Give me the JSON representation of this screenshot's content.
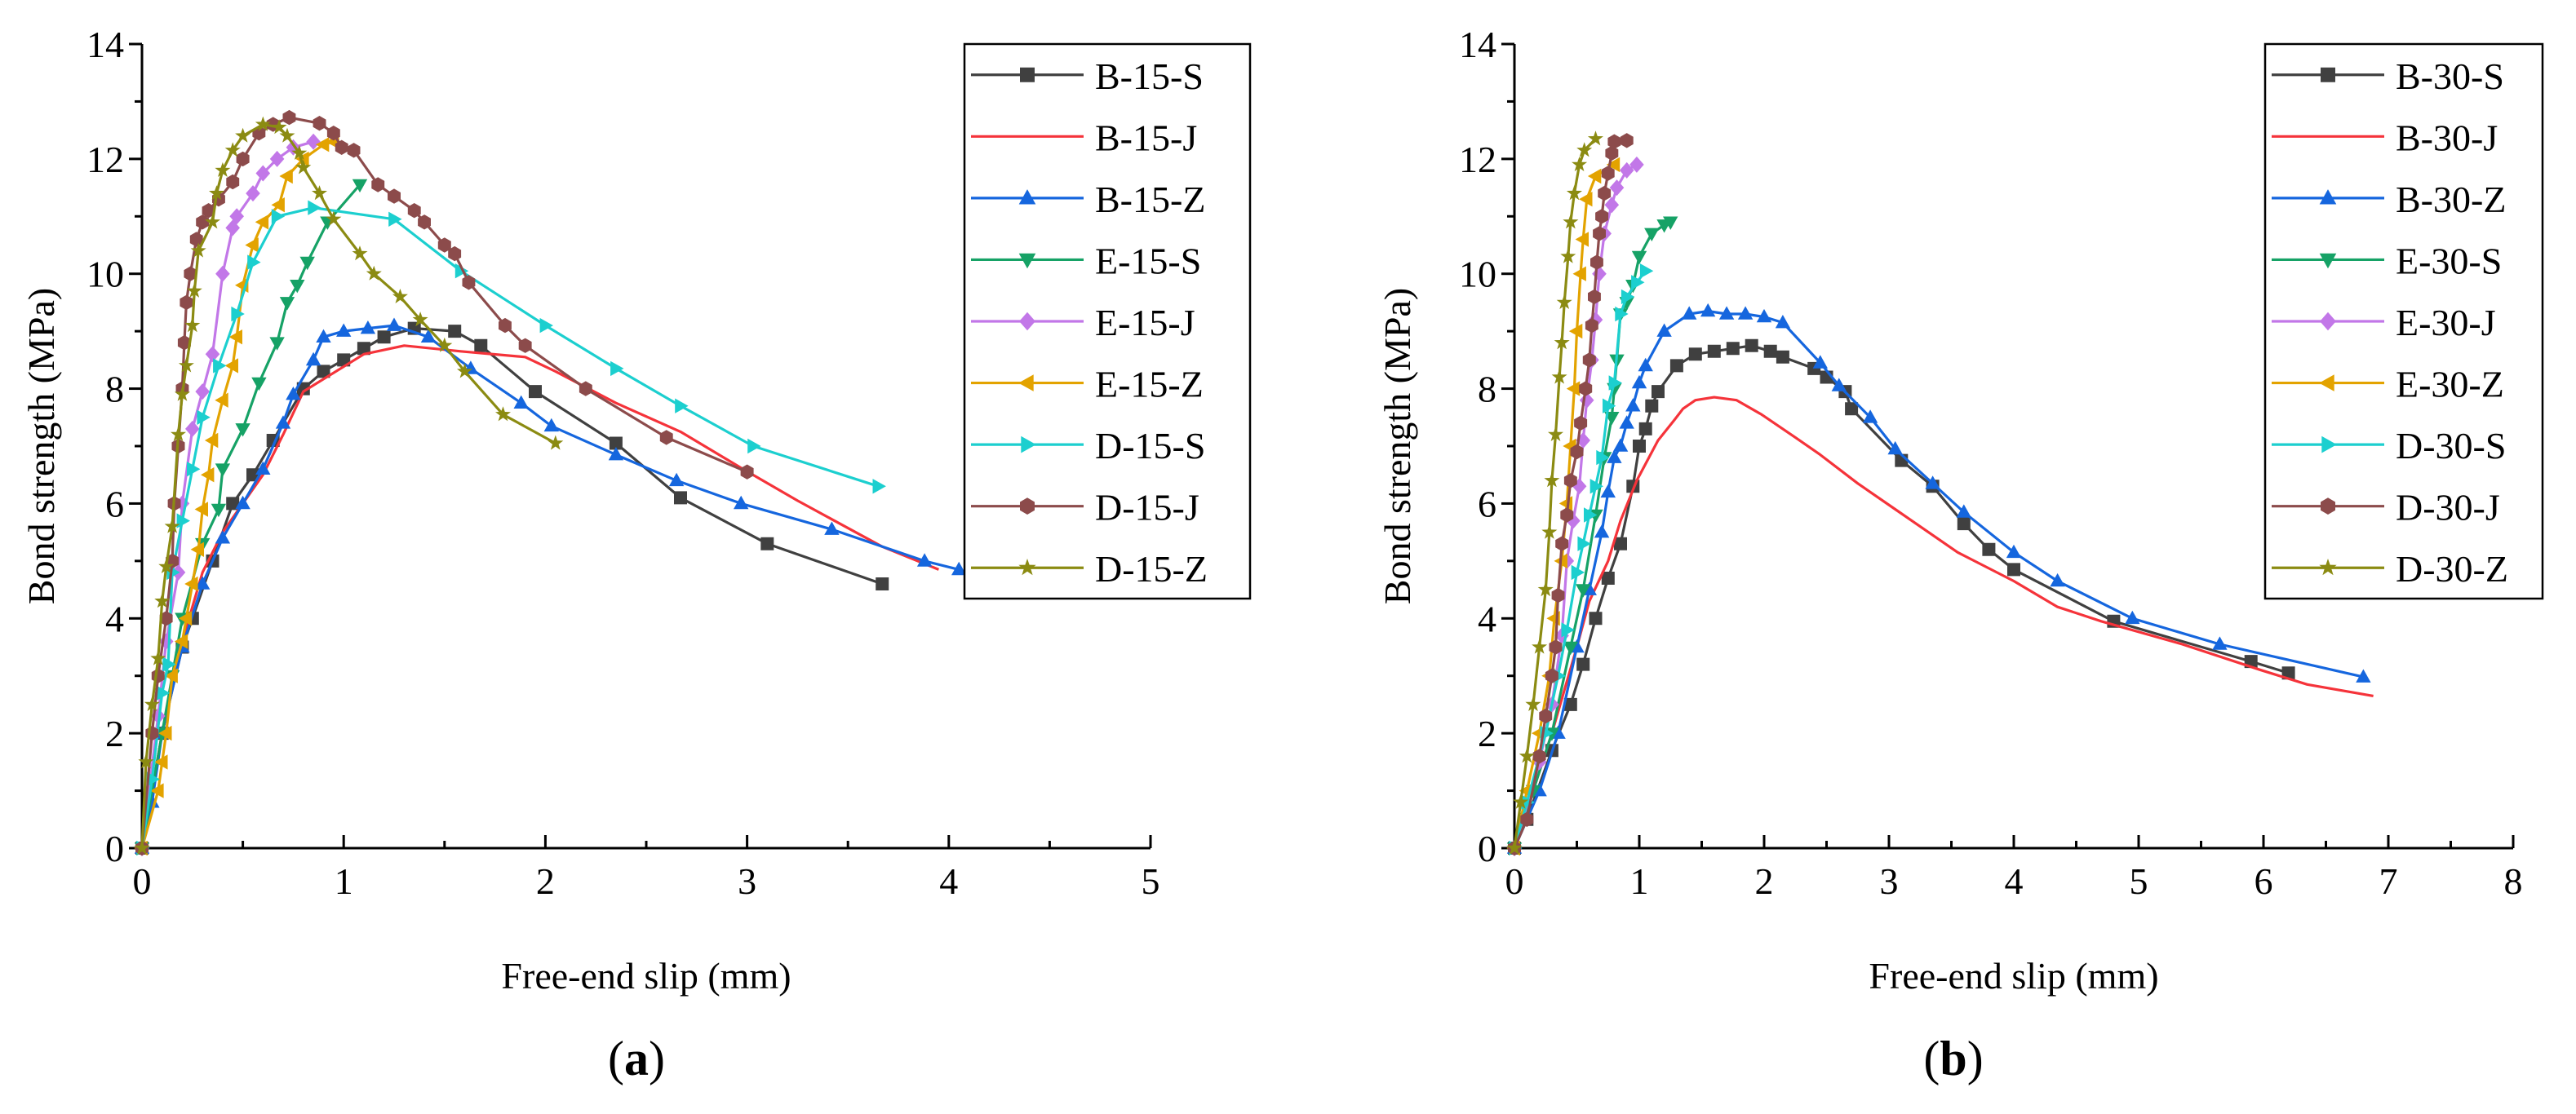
{
  "chart_data": [
    {
      "type": "line",
      "caption_open": "(",
      "caption_letter": "a",
      "caption_close": ")",
      "xlabel": "Free-end slip (mm)",
      "ylabel": "Bond strength (MPa)",
      "xlim": [
        0,
        5
      ],
      "ylim": [
        0,
        14
      ],
      "xticks": [
        "0",
        "1",
        "2",
        "3",
        "4",
        "5"
      ],
      "yticks": [
        "0",
        "2",
        "4",
        "6",
        "8",
        "10",
        "12",
        "14"
      ],
      "grid": false,
      "legend_position": "top-right",
      "series": [
        {
          "name": "B-15-S",
          "color": "#404040",
          "marker": "square",
          "x": [
            0,
            0.1,
            0.2,
            0.25,
            0.35,
            0.45,
            0.55,
            0.65,
            0.8,
            0.9,
            1.0,
            1.1,
            1.2,
            1.35,
            1.55,
            1.68,
            1.95,
            2.35,
            2.67,
            3.1,
            3.67
          ],
          "y": [
            0,
            2,
            3.5,
            4,
            5,
            6,
            6.5,
            7.1,
            8,
            8.3,
            8.5,
            8.7,
            8.9,
            9.05,
            9,
            8.75,
            7.95,
            7.05,
            6.1,
            5.3,
            4.6
          ]
        },
        {
          "name": "B-15-J",
          "color": "#f5333a",
          "marker": "circle",
          "x": [
            0,
            0.1,
            0.2,
            0.3,
            0.4,
            0.5,
            0.6,
            0.7,
            0.8,
            1.1,
            1.3,
            1.58,
            1.9,
            2.05,
            2.35,
            2.67,
            2.98,
            3.25,
            3.67,
            3.95
          ],
          "y": [
            0,
            2,
            3.6,
            4.8,
            5.5,
            6.0,
            6.5,
            7.2,
            7.95,
            8.6,
            8.75,
            8.65,
            8.55,
            8.3,
            7.75,
            7.25,
            6.6,
            6.05,
            5.25,
            4.85
          ]
        },
        {
          "name": "B-15-Z",
          "color": "#1566de",
          "marker": "triangle-up",
          "x": [
            0,
            0.05,
            0.1,
            0.2,
            0.3,
            0.4,
            0.5,
            0.6,
            0.7,
            0.75,
            0.85,
            0.9,
            1.0,
            1.12,
            1.25,
            1.42,
            1.63,
            1.88,
            2.03,
            2.35,
            2.65,
            2.97,
            3.42,
            3.88,
            4.05
          ],
          "y": [
            0,
            0.8,
            2,
            3.5,
            4.6,
            5.4,
            6.0,
            6.6,
            7.4,
            7.9,
            8.5,
            8.9,
            9.0,
            9.05,
            9.1,
            8.9,
            8.35,
            7.75,
            7.35,
            6.85,
            6.4,
            6.0,
            5.55,
            5.0,
            4.85
          ]
        },
        {
          "name": "E-15-S",
          "color": "#16a266",
          "marker": "triangle-down",
          "x": [
            0,
            0.1,
            0.15,
            0.2,
            0.3,
            0.38,
            0.4,
            0.5,
            0.58,
            0.67,
            0.72,
            0.77,
            0.82,
            0.92,
            1.08
          ],
          "y": [
            0,
            2,
            3,
            4,
            5.3,
            5.9,
            6.6,
            7.3,
            8.1,
            8.8,
            9.5,
            9.8,
            10.2,
            10.9,
            11.55
          ]
        },
        {
          "name": "E-15-J",
          "color": "#c277e8",
          "marker": "diamond",
          "x": [
            0,
            0.08,
            0.12,
            0.18,
            0.2,
            0.25,
            0.3,
            0.35,
            0.4,
            0.45,
            0.47,
            0.55,
            0.6,
            0.67,
            0.75,
            0.85
          ],
          "y": [
            0,
            2.3,
            3.6,
            4.8,
            6,
            7.3,
            7.95,
            8.6,
            10,
            10.8,
            11,
            11.4,
            11.75,
            12.0,
            12.2,
            12.3
          ]
        },
        {
          "name": "E-15-Z",
          "color": "#e3a300",
          "marker": "triangle-left",
          "x": [
            0,
            0.08,
            0.1,
            0.12,
            0.15,
            0.2,
            0.22,
            0.25,
            0.28,
            0.3,
            0.33,
            0.35,
            0.4,
            0.45,
            0.47,
            0.5,
            0.55,
            0.6,
            0.68,
            0.72,
            0.8,
            0.9,
            0.95
          ],
          "y": [
            0,
            1,
            1.5,
            2,
            3,
            3.6,
            4,
            4.6,
            5.2,
            5.9,
            6.5,
            7.1,
            7.8,
            8.4,
            8.9,
            9.8,
            10.5,
            10.9,
            11.2,
            11.7,
            12.0,
            12.25,
            12.3
          ]
        },
        {
          "name": "D-15-S",
          "color": "#1ccfcf",
          "marker": "triangle-right",
          "x": [
            0,
            0.05,
            0.1,
            0.13,
            0.15,
            0.2,
            0.25,
            0.3,
            0.38,
            0.47,
            0.55,
            0.67,
            0.85,
            1.25,
            1.58,
            2.0,
            2.35,
            2.67,
            3.03,
            3.65
          ],
          "y": [
            0,
            1.2,
            2.7,
            3.2,
            4.8,
            5.7,
            6.6,
            7.5,
            8.4,
            9.3,
            10.2,
            11.0,
            11.15,
            10.95,
            10.05,
            9.1,
            8.35,
            7.7,
            7.0,
            6.3
          ]
        },
        {
          "name": "D-15-J",
          "color": "#8c4b4b",
          "marker": "hexagon",
          "x": [
            0,
            0.05,
            0.08,
            0.12,
            0.15,
            0.16,
            0.18,
            0.2,
            0.21,
            0.22,
            0.24,
            0.27,
            0.3,
            0.33,
            0.38,
            0.45,
            0.5,
            0.58,
            0.65,
            0.73,
            0.88,
            0.95,
            0.99,
            1.05,
            1.17,
            1.25,
            1.35,
            1.4,
            1.5,
            1.55,
            1.62,
            1.8,
            1.9,
            2.2,
            2.6,
            3.0
          ],
          "y": [
            0,
            2,
            3,
            4,
            5,
            6,
            7,
            8,
            8.8,
            9.5,
            10,
            10.6,
            10.9,
            11.1,
            11.3,
            11.6,
            12,
            12.45,
            12.6,
            12.72,
            12.62,
            12.45,
            12.2,
            12.15,
            11.55,
            11.35,
            11.1,
            10.9,
            10.5,
            10.35,
            9.85,
            9.1,
            8.75,
            8.0,
            7.15,
            6.55
          ]
        },
        {
          "name": "D-15-Z",
          "color": "#8b8b12",
          "marker": "star",
          "x": [
            0,
            0.02,
            0.05,
            0.08,
            0.1,
            0.12,
            0.15,
            0.18,
            0.2,
            0.22,
            0.25,
            0.26,
            0.28,
            0.35,
            0.37,
            0.4,
            0.45,
            0.5,
            0.6,
            0.68,
            0.72,
            0.78,
            0.8,
            0.88,
            0.95,
            1.08,
            1.15,
            1.28,
            1.38,
            1.5,
            1.6,
            1.79,
            2.05
          ],
          "y": [
            0,
            1.5,
            2.5,
            3.3,
            4.3,
            4.9,
            5.6,
            7.2,
            7.9,
            8.4,
            9.1,
            9.7,
            10.4,
            10.9,
            11.4,
            11.8,
            12.15,
            12.4,
            12.6,
            12.55,
            12.4,
            12.1,
            11.85,
            11.4,
            10.95,
            10.35,
            10.0,
            9.6,
            9.2,
            8.75,
            8.3,
            7.55,
            7.05
          ]
        }
      ]
    },
    {
      "type": "line",
      "caption_open": "(",
      "caption_letter": "b",
      "caption_close": ")",
      "xlabel": "Free-end slip (mm)",
      "ylabel": "Bond strength (MPa)",
      "xlim": [
        0,
        8
      ],
      "ylim": [
        0,
        14
      ],
      "xticks": [
        "0",
        "1",
        "2",
        "3",
        "4",
        "5",
        "6",
        "7",
        "8"
      ],
      "yticks": [
        "0",
        "2",
        "4",
        "6",
        "8",
        "10",
        "12",
        "14"
      ],
      "grid": false,
      "legend_position": "top-right",
      "series": [
        {
          "name": "B-30-S",
          "color": "#404040",
          "marker": "square",
          "x": [
            0,
            0.1,
            0.3,
            0.45,
            0.55,
            0.65,
            0.75,
            0.85,
            0.95,
            1.0,
            1.05,
            1.1,
            1.15,
            1.3,
            1.45,
            1.6,
            1.75,
            1.9,
            2.05,
            2.15,
            2.4,
            2.5,
            2.65,
            2.7,
            3.1,
            3.35,
            3.6,
            3.8,
            4.0,
            4.8,
            5.9,
            6.2
          ],
          "y": [
            0,
            0.5,
            1.7,
            2.5,
            3.2,
            4,
            4.7,
            5.3,
            6.3,
            7,
            7.3,
            7.7,
            7.95,
            8.4,
            8.6,
            8.65,
            8.7,
            8.75,
            8.65,
            8.55,
            8.35,
            8.2,
            7.95,
            7.65,
            6.75,
            6.3,
            5.65,
            5.2,
            4.85,
            3.95,
            3.25,
            3.05
          ]
        },
        {
          "name": "B-30-J",
          "color": "#f5333a",
          "marker": "circle",
          "x": [
            0,
            0.3,
            0.5,
            0.6,
            0.75,
            0.85,
            0.98,
            1.15,
            1.28,
            1.35,
            1.45,
            1.6,
            1.78,
            1.98,
            2.25,
            2.45,
            2.75,
            3.05,
            3.55,
            4.0,
            4.35,
            4.7,
            5.35,
            5.98,
            6.35,
            6.88
          ],
          "y": [
            0,
            2,
            3.5,
            4.3,
            5.0,
            5.7,
            6.4,
            7.1,
            7.45,
            7.65,
            7.8,
            7.85,
            7.8,
            7.55,
            7.15,
            6.85,
            6.35,
            5.9,
            5.15,
            4.65,
            4.2,
            3.95,
            3.55,
            3.1,
            2.85,
            2.65
          ]
        },
        {
          "name": "B-30-Z",
          "color": "#1566de",
          "marker": "triangle-up",
          "x": [
            0,
            0.2,
            0.35,
            0.5,
            0.6,
            0.7,
            0.75,
            0.8,
            0.85,
            0.9,
            0.95,
            1.0,
            1.05,
            1.2,
            1.4,
            1.55,
            1.7,
            1.85,
            2.0,
            2.15,
            2.45,
            2.6,
            2.85,
            3.05,
            3.35,
            3.6,
            4.0,
            4.35,
            4.95,
            5.65,
            6.8
          ],
          "y": [
            0,
            1,
            2,
            3.5,
            4.5,
            5.5,
            6.2,
            6.8,
            7.0,
            7.4,
            7.7,
            8.1,
            8.4,
            9.0,
            9.3,
            9.35,
            9.3,
            9.3,
            9.25,
            9.15,
            8.45,
            8.05,
            7.5,
            6.95,
            6.35,
            5.85,
            5.15,
            4.65,
            4.0,
            3.55,
            2.98
          ]
        },
        {
          "name": "E-30-S",
          "color": "#16a266",
          "marker": "triangle-down",
          "x": [
            0,
            0.15,
            0.3,
            0.45,
            0.55,
            0.65,
            0.72,
            0.78,
            0.8,
            0.82,
            0.85,
            0.9,
            0.95,
            1.0,
            1.1,
            1.2,
            1.25
          ],
          "y": [
            0,
            1,
            2,
            3.5,
            4.5,
            5.8,
            6.8,
            7.5,
            8,
            8.5,
            9.3,
            9.5,
            9.8,
            10.3,
            10.7,
            10.85,
            10.9
          ]
        },
        {
          "name": "E-30-J",
          "color": "#c277e8",
          "marker": "diamond",
          "x": [
            0,
            0.2,
            0.3,
            0.38,
            0.42,
            0.47,
            0.52,
            0.55,
            0.58,
            0.62,
            0.65,
            0.68,
            0.72,
            0.78,
            0.82,
            0.9,
            0.98
          ],
          "y": [
            0,
            1.5,
            2.5,
            3.7,
            5,
            5.7,
            6.3,
            7.1,
            7.8,
            8.5,
            9.2,
            10,
            10.7,
            11.2,
            11.5,
            11.8,
            11.9
          ]
        },
        {
          "name": "E-30-Z",
          "color": "#e3a300",
          "marker": "triangle-left",
          "x": [
            0,
            0.1,
            0.2,
            0.28,
            0.32,
            0.38,
            0.42,
            0.45,
            0.48,
            0.5,
            0.53,
            0.55,
            0.58,
            0.65,
            0.8
          ],
          "y": [
            0,
            1,
            2,
            3,
            4,
            5,
            6,
            7,
            8,
            9,
            10,
            10.6,
            11.3,
            11.7,
            11.9
          ]
        },
        {
          "name": "D-30-S",
          "color": "#1ccfcf",
          "marker": "triangle-right",
          "x": [
            0,
            0.1,
            0.25,
            0.35,
            0.42,
            0.5,
            0.55,
            0.6,
            0.65,
            0.7,
            0.75,
            0.8,
            0.85,
            0.9,
            0.98,
            1.05
          ],
          "y": [
            0,
            0.8,
            2,
            3,
            3.8,
            4.8,
            5.3,
            5.8,
            6.3,
            6.8,
            7.7,
            8.1,
            9.3,
            9.6,
            9.85,
            10.05
          ]
        },
        {
          "name": "D-30-J",
          "color": "#8c4b4b",
          "marker": "hexagon",
          "x": [
            0,
            0.1,
            0.2,
            0.25,
            0.3,
            0.33,
            0.35,
            0.38,
            0.42,
            0.45,
            0.5,
            0.53,
            0.57,
            0.6,
            0.62,
            0.64,
            0.66,
            0.68,
            0.7,
            0.72,
            0.75,
            0.78,
            0.8,
            0.9
          ],
          "y": [
            0,
            0.5,
            1.6,
            2.3,
            3,
            3.5,
            4.4,
            5.3,
            5.8,
            6.4,
            6.9,
            7.4,
            8,
            8.5,
            9.1,
            9.6,
            10.2,
            10.7,
            11,
            11.4,
            11.75,
            12.1,
            12.3,
            12.32
          ]
        },
        {
          "name": "D-30-Z",
          "color": "#8b8b12",
          "marker": "star",
          "x": [
            0,
            0.05,
            0.1,
            0.15,
            0.2,
            0.25,
            0.28,
            0.3,
            0.33,
            0.36,
            0.38,
            0.4,
            0.43,
            0.45,
            0.48,
            0.52,
            0.56,
            0.65
          ],
          "y": [
            0,
            0.8,
            1.6,
            2.5,
            3.5,
            4.5,
            5.5,
            6.4,
            7.2,
            8.2,
            8.8,
            9.5,
            10.3,
            10.9,
            11.4,
            11.9,
            12.15,
            12.35
          ]
        }
      ]
    }
  ]
}
